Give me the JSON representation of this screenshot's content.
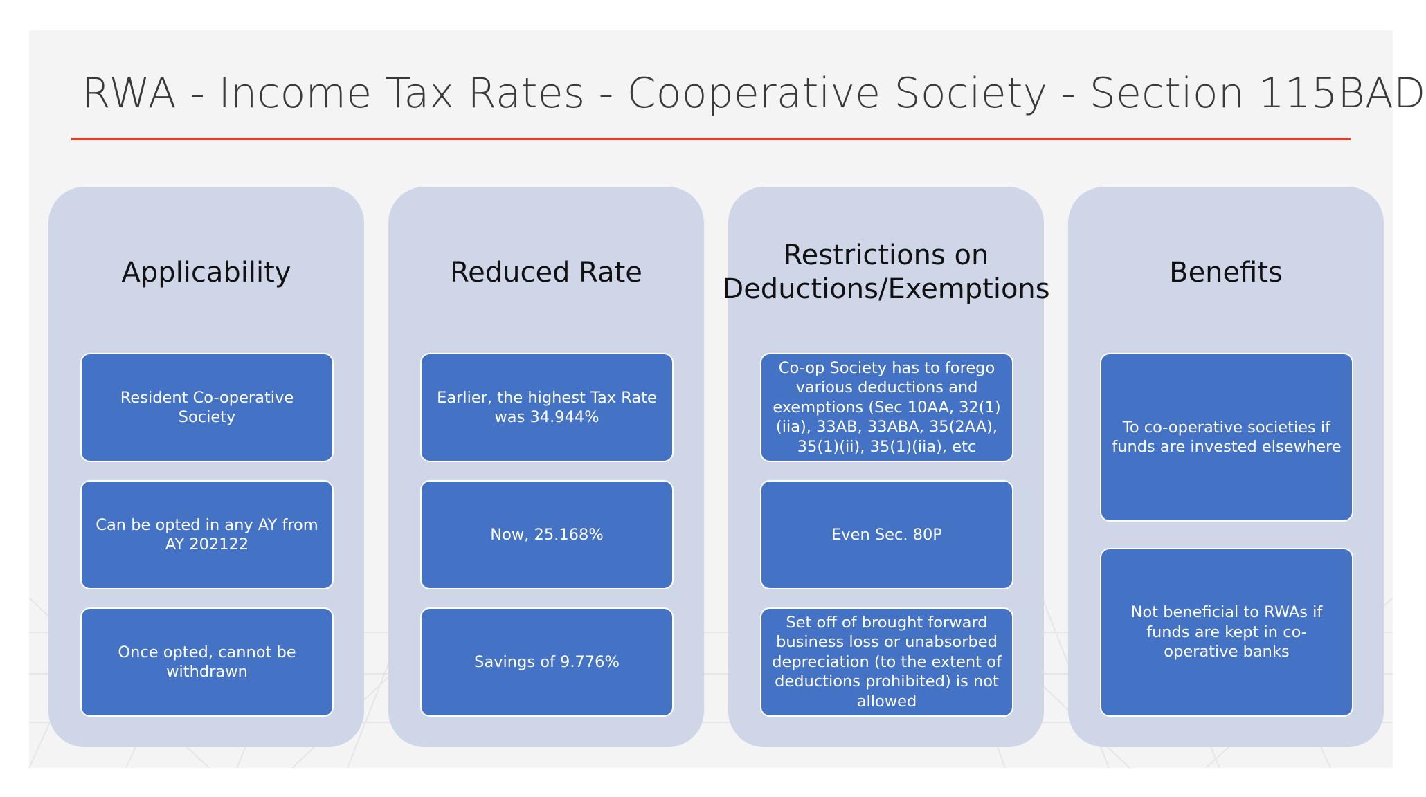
{
  "slide": {
    "title": "RWA - Income Tax Rates - Cooperative Society - Section 115BAD",
    "accent_color": "#d9412a",
    "column_color": "#cfd6e8",
    "box_color": "#4472c4"
  },
  "columns": [
    {
      "heading": "Applicability",
      "items": [
        "Resident Co-operative Society",
        "Can be opted in any AY from AY 202122",
        "Once opted, cannot be withdrawn"
      ]
    },
    {
      "heading": "Reduced Rate",
      "items": [
        "Earlier, the highest Tax Rate was 34.944%",
        "Now, 25.168%",
        "Savings of 9.776%"
      ]
    },
    {
      "heading": "Restrictions on Deductions/Exemptions",
      "items": [
        "Co-op Society has to forego various deductions and exemptions (Sec 10AA, 32(1)(iia), 33AB, 33ABA, 35(2AA), 35(1)(ii), 35(1)(iia), etc",
        "Even Sec. 80P",
        "Set off of brought forward business loss or unabsorbed depreciation (to the extent of deductions prohibited) is not allowed"
      ]
    },
    {
      "heading": "Benefits",
      "items": [
        "To co-operative societies if funds are invested elsewhere",
        "Not beneficial to RWAs if funds are kept in co-operative banks"
      ]
    }
  ]
}
